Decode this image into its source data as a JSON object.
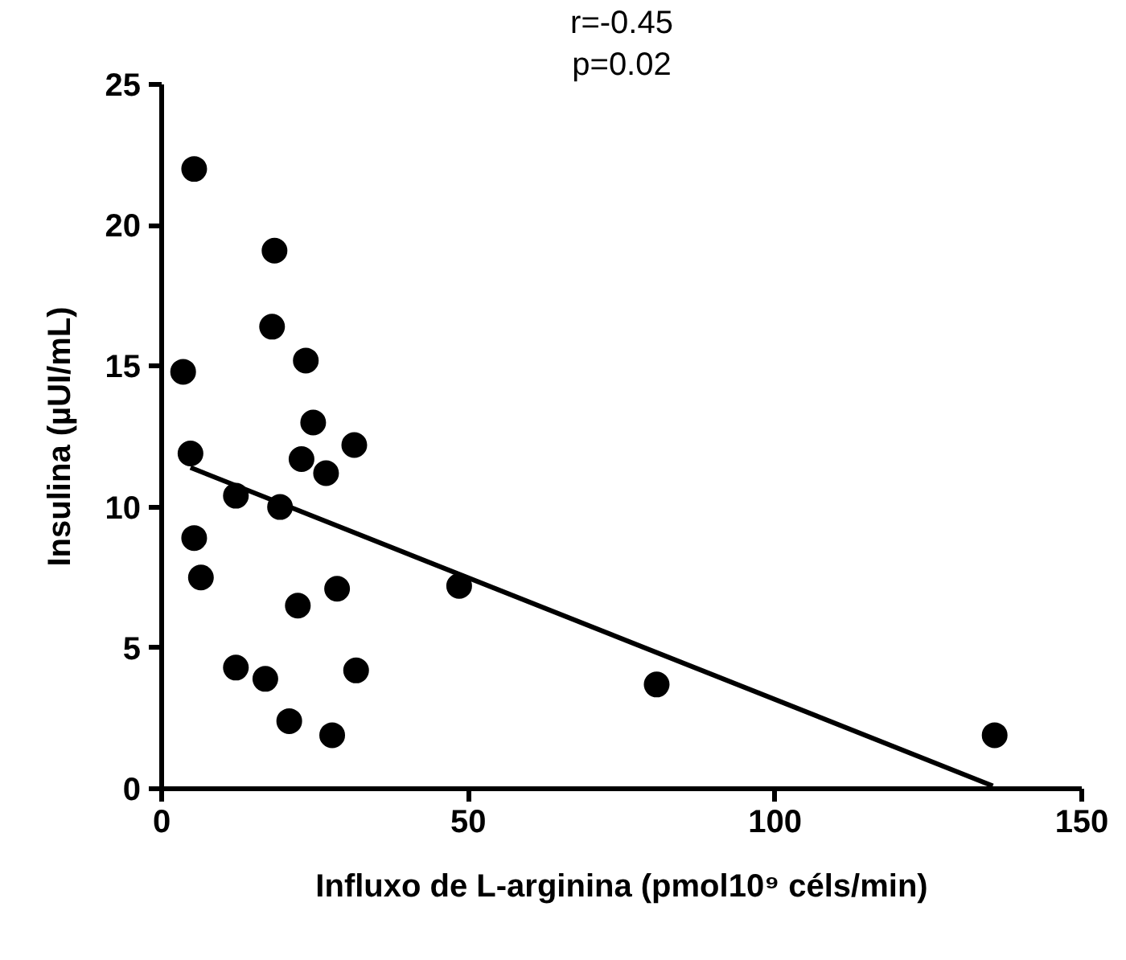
{
  "chart_data": {
    "type": "scatter",
    "xlabel": "Influxo de L-arginina (pmol10⁹ céls/min)",
    "ylabel": "Insulina (µUI/mL)",
    "annotations": [
      "r=-0.45",
      "p=0.02"
    ],
    "xlim": [
      0,
      150
    ],
    "ylim": [
      0,
      25
    ],
    "xticks": [
      0,
      50,
      100,
      150
    ],
    "yticks": [
      0,
      5,
      10,
      15,
      20,
      25
    ],
    "grid": false,
    "series": [
      {
        "marker": "circle",
        "color": "#000000",
        "x": [
          5.3,
          18.4,
          18.0,
          3.5,
          23.5,
          24.7,
          31.4,
          4.7,
          22.8,
          26.8,
          12.1,
          19.3,
          5.3,
          6.4,
          28.6,
          22.2,
          48.5,
          12.1,
          16.9,
          31.7,
          20.8,
          27.8,
          80.7,
          135.8
        ],
        "values": [
          22.0,
          19.1,
          16.4,
          14.8,
          15.2,
          13.0,
          12.2,
          11.9,
          11.7,
          11.2,
          10.4,
          10.0,
          8.9,
          7.5,
          7.1,
          6.5,
          7.2,
          4.3,
          3.9,
          4.2,
          2.4,
          1.9,
          3.7,
          1.9
        ]
      },
      {
        "type": "line",
        "color": "#000000",
        "x": [
          4.7,
          135.5
        ],
        "values": [
          11.4,
          0.1
        ]
      }
    ]
  }
}
